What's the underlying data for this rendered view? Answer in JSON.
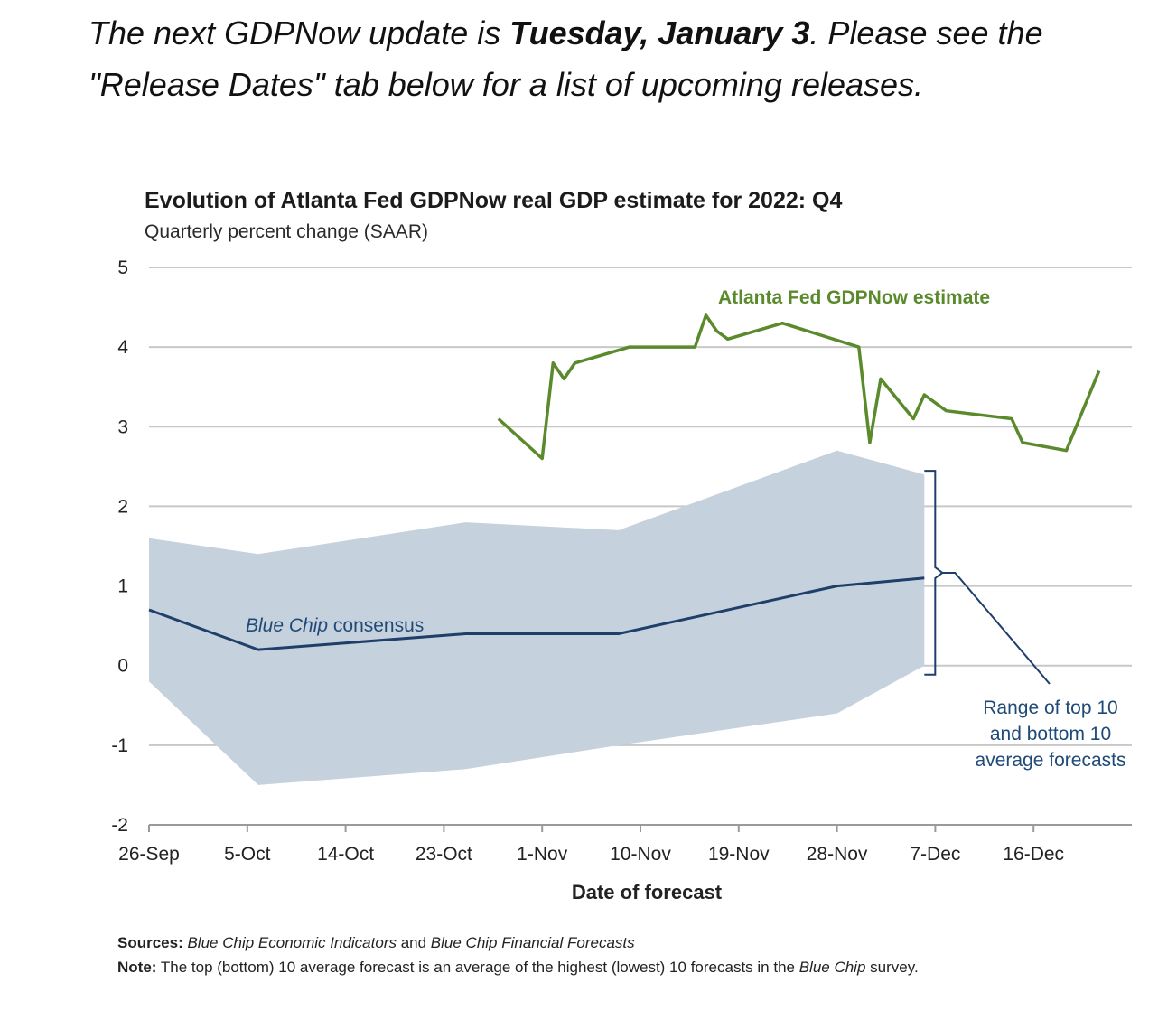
{
  "intro": {
    "before": "The next GDPNow update is ",
    "date": "Tuesday, January 3",
    "after": ". Please see the \"Release Dates\" tab below for a list of upcoming releases."
  },
  "chart_data": {
    "type": "line",
    "title": "Evolution of Atlanta Fed GDPNow real GDP estimate for 2022: Q4",
    "subtitle": "Quarterly percent change (SAAR)",
    "xlabel": "Date of forecast",
    "ylabel": "",
    "ylim": [
      -2,
      5
    ],
    "yticks": [
      5,
      4,
      3,
      2,
      1,
      0,
      -1,
      -2
    ],
    "xlim": [
      "2022-09-26",
      "2022-12-25"
    ],
    "xticks": [
      {
        "date": "2022-09-26",
        "label": "26-Sep"
      },
      {
        "date": "2022-10-05",
        "label": "5-Oct"
      },
      {
        "date": "2022-10-14",
        "label": "14-Oct"
      },
      {
        "date": "2022-10-23",
        "label": "23-Oct"
      },
      {
        "date": "2022-11-01",
        "label": "1-Nov"
      },
      {
        "date": "2022-11-10",
        "label": "10-Nov"
      },
      {
        "date": "2022-11-19",
        "label": "19-Nov"
      },
      {
        "date": "2022-11-28",
        "label": "28-Nov"
      },
      {
        "date": "2022-12-07",
        "label": "7-Dec"
      },
      {
        "date": "2022-12-16",
        "label": "16-Dec"
      }
    ],
    "grid": true,
    "series": [
      {
        "name": "Atlanta Fed GDPNow estimate",
        "color": "#5a8a2c",
        "points": [
          [
            "2022-10-28",
            3.1
          ],
          [
            "2022-11-01",
            2.6
          ],
          [
            "2022-11-02",
            3.8
          ],
          [
            "2022-11-03",
            3.6
          ],
          [
            "2022-11-04",
            3.8
          ],
          [
            "2022-11-09",
            4.0
          ],
          [
            "2022-11-15",
            4.0
          ],
          [
            "2022-11-16",
            4.4
          ],
          [
            "2022-11-17",
            4.2
          ],
          [
            "2022-11-18",
            4.1
          ],
          [
            "2022-11-23",
            4.3
          ],
          [
            "2022-11-30",
            4.0
          ],
          [
            "2022-12-01",
            2.8
          ],
          [
            "2022-12-02",
            3.6
          ],
          [
            "2022-12-05",
            3.1
          ],
          [
            "2022-12-06",
            3.4
          ],
          [
            "2022-12-08",
            3.2
          ],
          [
            "2022-12-14",
            3.1
          ],
          [
            "2022-12-15",
            2.8
          ],
          [
            "2022-12-19",
            2.7
          ],
          [
            "2022-12-22",
            3.7
          ]
        ]
      },
      {
        "name": "Blue Chip consensus",
        "color": "#1f3f6b",
        "points": [
          [
            "2022-09-26",
            0.7
          ],
          [
            "2022-10-06",
            0.2
          ],
          [
            "2022-10-25",
            0.4
          ],
          [
            "2022-11-08",
            0.4
          ],
          [
            "2022-11-28",
            1.0
          ],
          [
            "2022-12-06",
            1.1
          ]
        ]
      },
      {
        "name": "Range of top 10 and bottom 10 average forecasts",
        "color": "#c5d1dc",
        "type": "area",
        "upper": [
          [
            "2022-09-26",
            1.6
          ],
          [
            "2022-10-06",
            1.4
          ],
          [
            "2022-10-25",
            1.8
          ],
          [
            "2022-11-08",
            1.7
          ],
          [
            "2022-11-28",
            2.7
          ],
          [
            "2022-12-06",
            2.4
          ]
        ],
        "lower": [
          [
            "2022-09-26",
            -0.2
          ],
          [
            "2022-10-06",
            -1.5
          ],
          [
            "2022-10-25",
            -1.3
          ],
          [
            "2022-11-08",
            -1.0
          ],
          [
            "2022-11-28",
            -0.6
          ],
          [
            "2022-12-06",
            0.0
          ]
        ]
      }
    ],
    "annotations": {
      "green_label": "Atlanta Fed GDPNow estimate",
      "blue_label": "Blue Chip consensus",
      "range_line1": "Range of top 10",
      "range_line2": "and bottom 10",
      "range_line3": "average forecasts"
    }
  },
  "footer": {
    "sources_label": "Sources:",
    "sources_part1": " Blue Chip Economic Indicators",
    "sources_and": " and ",
    "sources_part2": "Blue Chip Financial Forecasts",
    "note_label": "Note:",
    "note_text": " The top (bottom) 10 average forecast is an average of the highest (lowest) 10 forecasts in the ",
    "note_italic": "Blue Chip",
    "note_end": " survey."
  }
}
